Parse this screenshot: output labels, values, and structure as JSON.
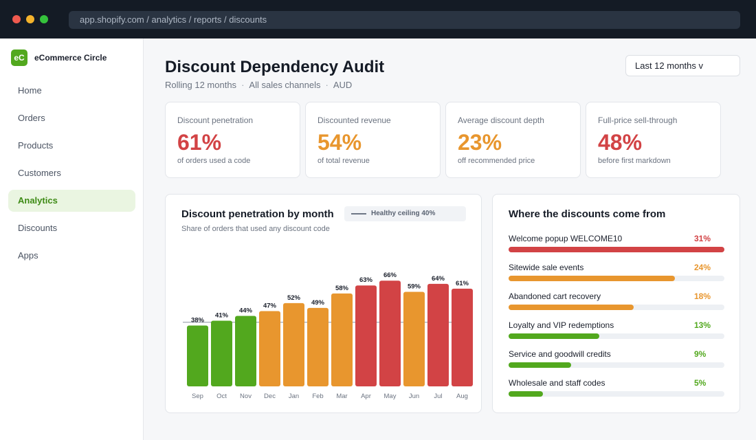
{
  "browser": {
    "url": "app.shopify.com  /  analytics / reports / discounts"
  },
  "sidebar": {
    "brand_logo": "eC",
    "brand_name": "eCommerce Circle",
    "items": [
      {
        "label": "Home",
        "active": false
      },
      {
        "label": "Orders",
        "active": false
      },
      {
        "label": "Products",
        "active": false
      },
      {
        "label": "Customers",
        "active": false
      },
      {
        "label": "Analytics",
        "active": true
      },
      {
        "label": "Discounts",
        "active": false
      },
      {
        "label": "Apps",
        "active": false
      }
    ]
  },
  "header": {
    "title": "Discount Dependency Audit",
    "subtitle": [
      "Rolling 12 months",
      "All sales channels",
      "AUD"
    ],
    "range_select": "Last 12 months  v"
  },
  "kpis": [
    {
      "label": "Discount penetration",
      "value": "61%",
      "note": "of orders used a code",
      "color": "#d24345"
    },
    {
      "label": "Discounted revenue",
      "value": "54%",
      "note": "of total revenue",
      "color": "#e8962e"
    },
    {
      "label": "Average discount depth",
      "value": "23%",
      "note": "off recommended price",
      "color": "#e8962e"
    },
    {
      "label": "Full-price sell-through",
      "value": "48%",
      "note": "before first markdown",
      "color": "#d24345"
    }
  ],
  "chart_panel": {
    "title": "Discount penetration by month",
    "subtitle": "Share of orders that used any discount code",
    "legend": "Healthy ceiling 40%"
  },
  "chart_data": {
    "type": "bar",
    "categories": [
      "Sep",
      "Oct",
      "Nov",
      "Dec",
      "Jan",
      "Feb",
      "Mar",
      "Apr",
      "May",
      "Jun",
      "Jul",
      "Aug"
    ],
    "values": [
      38,
      41,
      44,
      47,
      52,
      49,
      58,
      63,
      66,
      59,
      64,
      61
    ],
    "data_labels": [
      "38%",
      "41%",
      "44%",
      "47%",
      "52%",
      "49%",
      "58%",
      "63%",
      "66%",
      "59%",
      "64%",
      "61%"
    ],
    "bar_colors": [
      "#52a81e",
      "#52a81e",
      "#52a81e",
      "#e8962e",
      "#e8962e",
      "#e8962e",
      "#e8962e",
      "#d24345",
      "#d24345",
      "#e8962e",
      "#d24345",
      "#d24345"
    ],
    "reference_line": {
      "name": "Healthy ceiling 40%",
      "value": 40
    },
    "ylim": [
      0,
      70
    ],
    "grid": false,
    "title": "Discount penetration by month",
    "subtitle": "Share of orders that used any discount code"
  },
  "sources_panel": {
    "title": "Where the discounts come from",
    "rows": [
      {
        "label": "Welcome popup WELCOME10",
        "pct": "31%",
        "share": 1.0,
        "color": "#d24345"
      },
      {
        "label": "Sitewide sale events",
        "pct": "24%",
        "share": 0.77,
        "color": "#e8962e"
      },
      {
        "label": "Abandoned cart recovery",
        "pct": "18%",
        "share": 0.58,
        "color": "#e8962e"
      },
      {
        "label": "Loyalty and VIP redemptions",
        "pct": "13%",
        "share": 0.42,
        "color": "#52a81e"
      },
      {
        "label": "Service and goodwill credits",
        "pct": "9%",
        "share": 0.29,
        "color": "#52a81e"
      },
      {
        "label": "Wholesale and staff codes",
        "pct": "5%",
        "share": 0.16,
        "color": "#52a81e"
      }
    ]
  }
}
